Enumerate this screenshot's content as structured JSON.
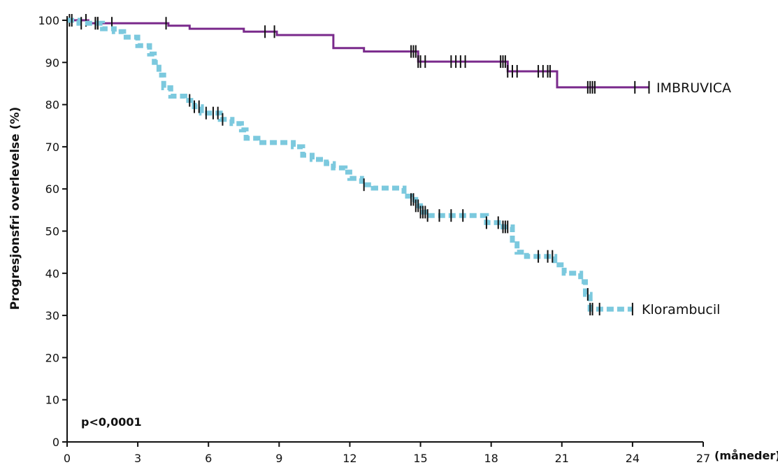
{
  "chart_data": {
    "type": "line",
    "title": "",
    "xlabel": "(måneder)",
    "ylabel": "Progresjonsfri overlevelse (%)",
    "xlim": [
      0,
      27
    ],
    "ylim": [
      0,
      100
    ],
    "x_ticks": [
      "0",
      "3",
      "6",
      "9",
      "12",
      "15",
      "18",
      "21",
      "24",
      "27"
    ],
    "y_ticks": [
      "0",
      "10",
      "20",
      "30",
      "40",
      "50",
      "60",
      "70",
      "80",
      "90",
      "100"
    ],
    "annotation": "p<0,0001",
    "grid": false,
    "series": [
      {
        "name": "IMBRUVICA",
        "color": "#7a2a8c",
        "style": "solid",
        "x": [
          0,
          0.4,
          0.9,
          2,
          4.3,
          5.2,
          7.5,
          8.9,
          11.1,
          11.3,
          12.6,
          14.4,
          14.9,
          18.5,
          18.7,
          20.7,
          20.8,
          24.7
        ],
        "y": [
          100,
          100,
          99.3,
          99.3,
          98.7,
          98.0,
          97.3,
          96.5,
          96.5,
          93.4,
          92.6,
          92.6,
          90.2,
          90.2,
          87.9,
          87.9,
          84.1,
          84.1
        ],
        "censored_x": [
          0.1,
          0.8,
          1.2,
          1.3,
          1.9,
          4.2,
          8.4,
          8.8,
          14.6,
          14.7,
          14.8,
          14.9,
          15.0,
          15.2,
          16.3,
          16.5,
          16.7,
          16.9,
          18.4,
          18.5,
          18.6,
          18.7,
          18.9,
          19.1,
          20.0,
          20.2,
          20.4,
          20.5,
          22.1,
          22.2,
          22.3,
          22.4,
          24.1,
          24.7
        ]
      },
      {
        "name": "Klorambucil",
        "color": "#7cc9de",
        "style": "dashed",
        "x": [
          0,
          0.5,
          1.5,
          2.0,
          2.4,
          3.0,
          3.5,
          3.7,
          3.9,
          4.1,
          4.4,
          5.0,
          5.4,
          5.7,
          6.5,
          7.0,
          7.4,
          7.6,
          8.1,
          8.5,
          9.6,
          10.0,
          10.4,
          11.0,
          11.3,
          11.8,
          12.0,
          12.5,
          13.0,
          14.3,
          14.6,
          14.8,
          15.0,
          15.3,
          17.8,
          18.5,
          18.9,
          19.1,
          19.5,
          20.4,
          20.7,
          21.1,
          21.5,
          21.8,
          22.0,
          22.2,
          24.0
        ],
        "y": [
          100,
          99.3,
          98.0,
          97.3,
          96.0,
          94.0,
          92.0,
          90.0,
          87.0,
          84.0,
          82.0,
          81.0,
          79.5,
          78.0,
          76.5,
          75.5,
          74.0,
          72.0,
          71.0,
          71.0,
          70.0,
          68.0,
          67.0,
          66.0,
          65.0,
          64.0,
          62.5,
          61.0,
          60.2,
          58.3,
          57.5,
          56.0,
          54.5,
          53.7,
          52.0,
          51.0,
          47.0,
          45.0,
          44.0,
          44.0,
          42.0,
          40.0,
          40.0,
          38.0,
          35.0,
          31.5,
          31.5
        ],
        "censored_x": [
          0.2,
          0.6,
          1.2,
          1.3,
          5.2,
          5.4,
          5.6,
          5.9,
          6.2,
          6.4,
          6.6,
          12.6,
          14.6,
          14.7,
          14.8,
          14.9,
          15.0,
          15.1,
          15.2,
          15.3,
          15.8,
          16.3,
          16.8,
          17.8,
          18.3,
          18.5,
          18.6,
          18.7,
          20.0,
          20.4,
          20.6,
          22.1,
          22.2,
          22.3,
          22.6,
          24.0
        ]
      }
    ]
  }
}
